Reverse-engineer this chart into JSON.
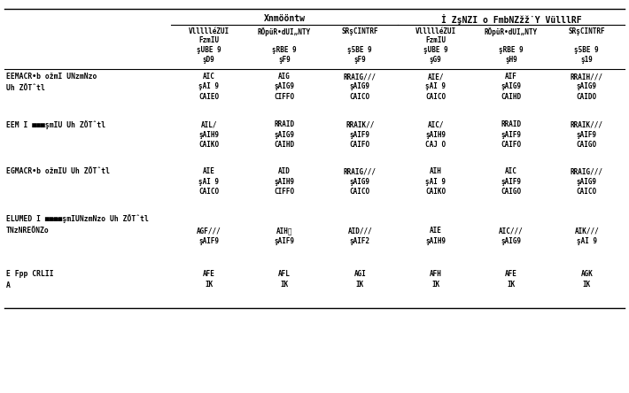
{
  "figsize": [
    7.1,
    4.44
  ],
  "dpi": 100,
  "bg_color": "#ffffff",
  "text_color": "#000000",
  "font_family": "DejaVu Sans",
  "col_group1": "Xnmööntw",
  "col_group2": "İ ZşNZI o FmbNZžž̇Y VülllRF",
  "subheaders": [
    [
      "VllllléZUI",
      "FzmIU",
      "şUBE 9",
      "şD9"
    ],
    [
      "RÖpüR•dUI„NTY",
      "",
      "şRBE 9",
      "şF9"
    ],
    [
      "SRşCINTRF",
      "",
      "ş5BE 9",
      "şF9"
    ],
    [
      "VllllléZUI",
      "FzmIU",
      "şUBE 9",
      "şG9"
    ],
    [
      "RÖpüR•dUI„NTY",
      "",
      "şRBE 9",
      "şH9"
    ],
    [
      "SRşCINTRF",
      "",
      "ş5BE 9",
      "ş19"
    ]
  ],
  "row_labels": [
    [
      "EEMACR•b ožmI UNzmNzo",
      "Uh ZÖT̂tl"
    ],
    [
      "EEM I ■■■şmIU Uh ZÖT̂tl"
    ],
    [
      "EGMACR•b ožmIU Uh ZÖT̂tl"
    ],
    [
      "ELUMED I ■■■■şmIUNzmNzo Uh ZÖT̂tl"
    ],
    [
      "TNzNREÖNZo"
    ],
    [
      "E Fpp CRLII",
      "A"
    ]
  ],
  "cells": [
    [
      "AIC\nşAI 9\nCAIEO",
      "AIG\nşAIG9\nCIFFO",
      "RRAIG///\nşAIG9\nCAICO",
      "AIE/\nşAI 9\nCAICO",
      "AIF\nşAIG9\nCAIHD",
      "RRAIH///\nşAIG9\nCAIDO"
    ],
    [
      "AIL/\nşAIH9\nCAIKO",
      "RRAID\nşAIG9\nCAIHD",
      "RRAIK//\nşAIF9\nCAIFO",
      "AIC/\nşAIH9\nCAJ O",
      "RRAID\nşAIF9\nCAIFO",
      "RRAIK///\nşAIF9\nCAIGO"
    ],
    [
      "AIE\nşAI 9\nCAICO",
      "AID\nşAIH9\nCIFFO",
      "RRAIG///\nşAIG9\nCAICO",
      "AIH\nşAI 9\nCAIKO",
      "AIC\nşAIF9\nCAIGO",
      "RRAIG///\nşAIG9\nCAICO"
    ],
    [
      "",
      "",
      "",
      "",
      "",
      ""
    ],
    [
      "AGF///\nşAIF9",
      "AIHͶ\nşAIF9",
      "AID///\nşAIF2",
      "AIE\nşAIH9",
      "AIC///\nşAIG9",
      "AIK///\nşAI 9"
    ],
    [
      "AFE\nIK",
      "AFL\nIK",
      "AGI\nIK",
      "AFH\nIK",
      "AFE\nIK",
      "AGK\nIK"
    ]
  ]
}
